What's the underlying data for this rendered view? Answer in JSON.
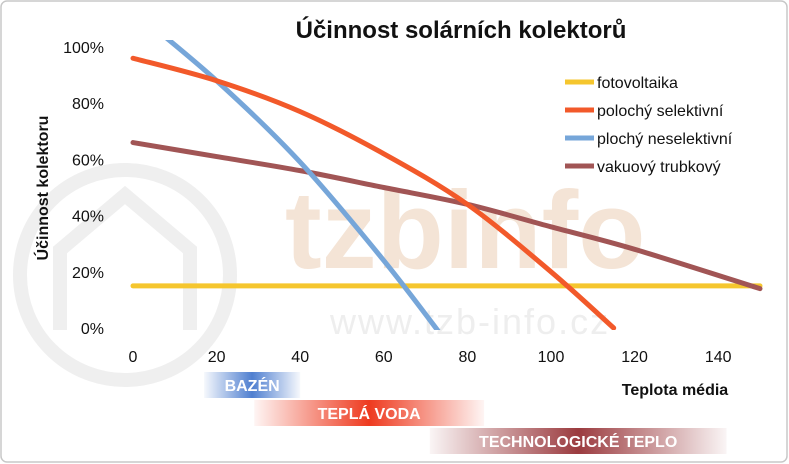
{
  "chart_data": {
    "type": "line",
    "title": "Účinnost solárních kolektorů",
    "xlabel": "Teplota média",
    "ylabel": "Účinnost kolektoru",
    "xlim": [
      0,
      150
    ],
    "ylim": [
      0,
      100
    ],
    "x_ticks": [
      "0",
      "20",
      "40",
      "60",
      "80",
      "100",
      "120",
      "140"
    ],
    "y_ticks": [
      "0%",
      "20%",
      "40%",
      "60%",
      "80%",
      "100%"
    ],
    "legend_position": "right",
    "grid": false,
    "series": [
      {
        "name": "fotovoltaika",
        "color": "#f5c62e",
        "x": [
          0,
          150
        ],
        "y": [
          15,
          15
        ]
      },
      {
        "name": "polochý selektivní",
        "color": "#f2592a",
        "x": [
          0,
          20,
          40,
          60,
          80,
          100,
          115
        ],
        "y": [
          96,
          88,
          77,
          62,
          44,
          20,
          0
        ]
      },
      {
        "name": "plochý neselektivní",
        "color": "#76a6d9",
        "x": [
          0,
          20,
          40,
          60,
          75
        ],
        "y": [
          113,
          88,
          59,
          24,
          -5
        ]
      },
      {
        "name": "vakuový trubkový",
        "color": "#a15555",
        "x": [
          0,
          20,
          40,
          60,
          80,
          100,
          120,
          150
        ],
        "y": [
          66,
          61,
          56,
          50,
          44,
          36,
          28,
          14
        ]
      }
    ],
    "bands": [
      {
        "label": "BAZÉN",
        "color": "#4f7fd0",
        "x0": 17,
        "x1": 40
      },
      {
        "label": "TEPLÁ VODA",
        "color": "#ee3a1f",
        "x0": 29,
        "x1": 84
      },
      {
        "label": "TECHNOLOGICKÉ  TEPLO",
        "color": "#9b3b3f",
        "x0": 71,
        "x1": 142
      }
    ]
  },
  "watermark": {
    "text": "tzbinfo",
    "url": "www.tzb-info.cz"
  }
}
